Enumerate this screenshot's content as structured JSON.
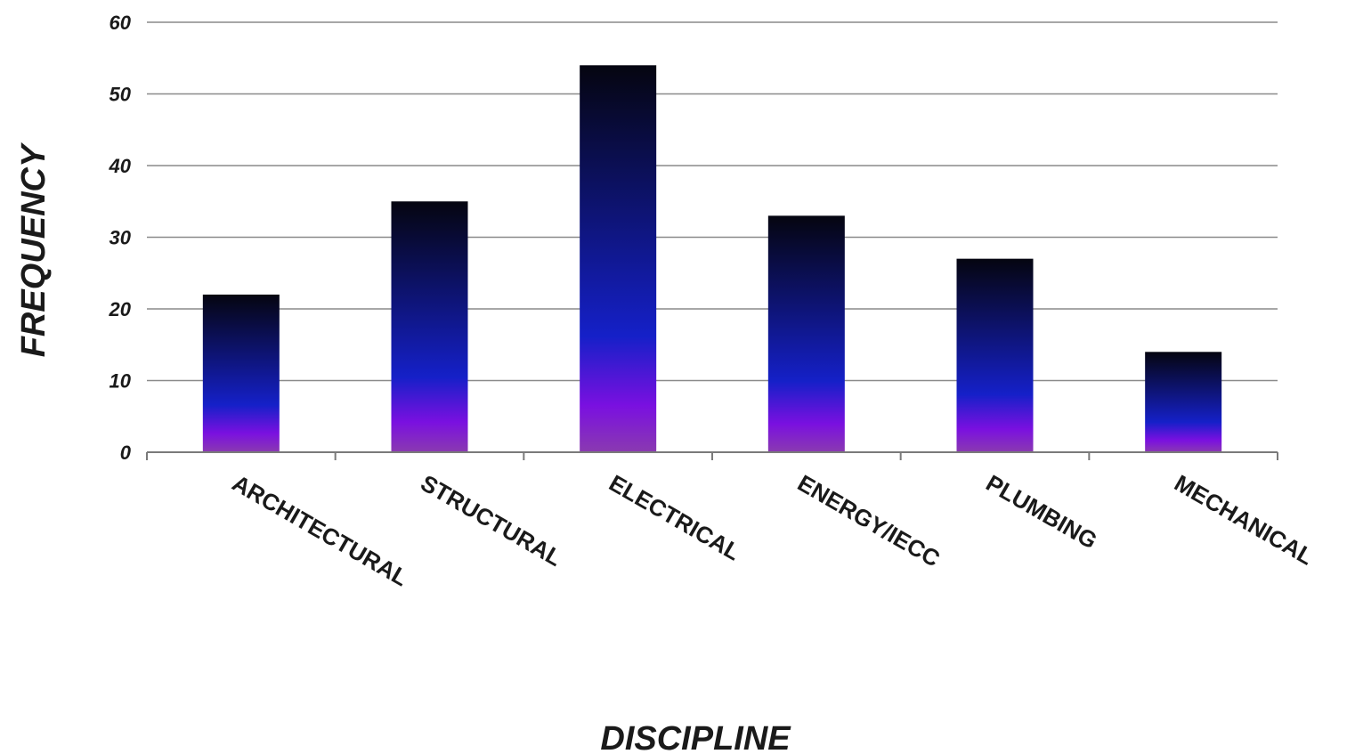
{
  "chart_data": {
    "type": "bar",
    "categories": [
      "ARCHITECTURAL",
      "STRUCTURAL",
      "ELECTRICAL",
      "ENERGY/IECC",
      "PLUMBING",
      "MECHANICAL"
    ],
    "values": [
      22,
      35,
      54,
      33,
      27,
      14
    ],
    "xlabel": "DISCIPLINE",
    "ylabel": "FREQUENCY",
    "ylim": [
      0,
      60
    ],
    "yticks": [
      0,
      10,
      20,
      30,
      40,
      50,
      60
    ],
    "grid": true,
    "legend": "none",
    "bar_gradient": [
      "#050510",
      "#1520c8",
      "#7a10e0",
      "#8a3ab0"
    ]
  }
}
